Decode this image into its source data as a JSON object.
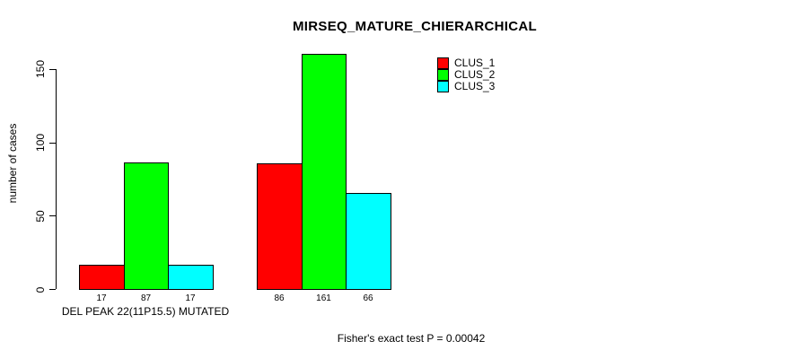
{
  "colors": {
    "foreground": "#000000",
    "background": "#ffffff",
    "clus_1": "#ff0000",
    "clus_2": "#00ff00",
    "clus_3": "#00ffff"
  },
  "chart_data": {
    "type": "bar",
    "title": "MIRSEQ_MATURE_CHIERARCHICAL",
    "ylabel": "number of cases",
    "xlabel": "DEL PEAK 22(11P15.5) MUTATED",
    "annotation": "Fisher's exact test P = 0.00042",
    "categories": [
      "DEL PEAK 22(11P15.5) MUTATED",
      ""
    ],
    "series": [
      {
        "name": "CLUS_1",
        "color": "#ff0000",
        "values": [
          17,
          86
        ]
      },
      {
        "name": "CLUS_2",
        "color": "#00ff00",
        "values": [
          87,
          161
        ]
      },
      {
        "name": "CLUS_3",
        "color": "#00ffff",
        "values": [
          17,
          66
        ]
      }
    ],
    "yticks": [
      0,
      50,
      100,
      150
    ],
    "ylim": [
      0,
      165
    ],
    "grid": false,
    "legend_position": "top-right",
    "bar_value_labels": true
  }
}
